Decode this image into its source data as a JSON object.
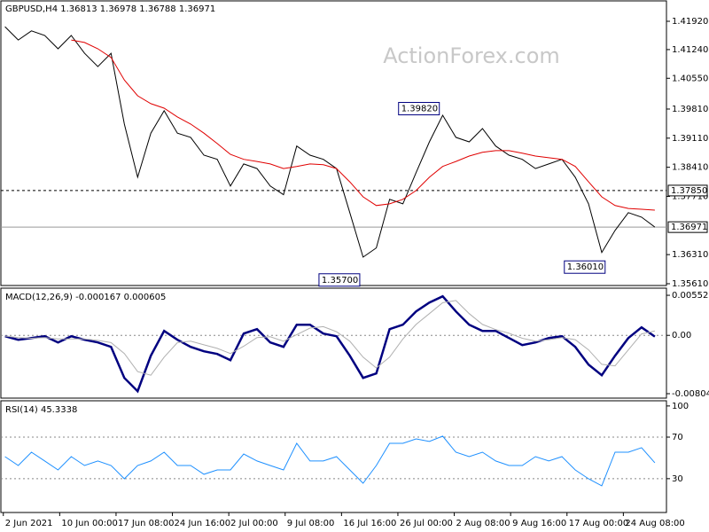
{
  "chart_data": [
    {
      "type": "line",
      "title": "GBPUSD,H4 1.36813 1.36978 1.36788 1.36971",
      "watermark": "ActionForex.com",
      "x": [
        1,
        9,
        17,
        25,
        33,
        41,
        49,
        57,
        65,
        73,
        81,
        89,
        97,
        105,
        113,
        121,
        129,
        137,
        145,
        153,
        161,
        169,
        177,
        185,
        193,
        201,
        209,
        217,
        225,
        233,
        241,
        249,
        257,
        265,
        273,
        281,
        289,
        297,
        305,
        313,
        321,
        329,
        337,
        345,
        353,
        361,
        369,
        377,
        385,
        393
      ],
      "xlim": [
        -2,
        400
      ],
      "series": [
        {
          "color": "#000000",
          "values": [
            1.4179,
            1.4147,
            1.4169,
            1.4158,
            1.4126,
            1.4158,
            1.4115,
            1.4083,
            1.4115,
            1.3945,
            1.3817,
            1.3923,
            1.3977,
            1.3923,
            1.3913,
            1.387,
            1.386,
            1.3796,
            1.3849,
            1.3838,
            1.3796,
            1.3775,
            1.3892,
            1.387,
            1.386,
            1.3838,
            1.3732,
            1.3625,
            1.3647,
            1.3764,
            1.3753,
            1.3828,
            1.3902,
            1.3966,
            1.3913,
            1.3902,
            1.3934,
            1.3892,
            1.387,
            1.386,
            1.3838,
            1.3849,
            1.386,
            1.3817,
            1.3753,
            1.3636,
            1.3689,
            1.3732,
            1.3721,
            1.36971
          ]
        },
        {
          "color": "#e00000",
          "values": [
            null,
            null,
            null,
            null,
            null,
            1.4147,
            1.4141,
            1.4126,
            1.4105,
            1.4051,
            1.4013,
            1.3994,
            1.3983,
            1.3962,
            1.3945,
            1.3923,
            1.3898,
            1.3872,
            1.386,
            1.3855,
            1.3849,
            1.3838,
            1.3843,
            1.3849,
            1.3847,
            1.3838,
            1.3806,
            1.377,
            1.3749,
            1.3753,
            1.3764,
            1.3785,
            1.3817,
            1.3843,
            1.3855,
            1.3868,
            1.3877,
            1.3881,
            1.3881,
            1.3875,
            1.3868,
            1.3864,
            1.386,
            1.3843,
            1.3806,
            1.377,
            1.3749,
            1.3742,
            1.374,
            1.3738
          ]
        }
      ],
      "ylim": [
        1.35503,
        1.42432
      ],
      "yticks": [
        {
          "value": 1.4192,
          "label": "1.41920"
        },
        {
          "value": 1.4124,
          "label": "1.41240"
        },
        {
          "value": 1.4055,
          "label": "1.40550"
        },
        {
          "value": 1.3981,
          "label": "1.39810"
        },
        {
          "value": 1.3911,
          "label": "1.39110"
        },
        {
          "value": 1.3841,
          "label": "1.38410"
        },
        {
          "value": 1.3771,
          "label": "1.37710"
        },
        {
          "value": 1.3631,
          "label": "1.36310"
        },
        {
          "value": 1.3561,
          "label": "1.35610"
        }
      ],
      "hlines": [
        {
          "value": 1.3785,
          "label": "1.37850",
          "style": "dashed"
        },
        {
          "value": 1.36971,
          "label": "1.36971",
          "style": "solid"
        }
      ],
      "annotations": [
        {
          "x": 263,
          "value": 1.3982,
          "label": "1.39820"
        },
        {
          "x": 215,
          "value": 1.357,
          "label": "1.35700"
        },
        {
          "x": 363,
          "value": 1.3601,
          "label": "1.36010"
        }
      ]
    },
    {
      "type": "line",
      "title": "MACD(12,26,9) -0.000167 0.000605",
      "series": [
        {
          "color": "#000080",
          "width": 2.5,
          "values": [
            -0.00012,
            -0.00061,
            -0.00037,
            -0.00012,
            -0.00098,
            -0.00012,
            -0.00061,
            -0.00098,
            -0.00159,
            -0.00586,
            -0.0077,
            -0.00281,
            0.00061,
            -0.00061,
            -0.00159,
            -0.0022,
            -0.00257,
            -0.00342,
            0.00024,
            0.00086,
            -0.00098,
            -0.00159,
            0.00147,
            0.00147,
            0.00024,
            -0.00012,
            -0.00281,
            -0.00586,
            -0.00525,
            0.00086,
            0.00147,
            0.0033,
            0.00452,
            0.00538,
            0.0033,
            0.00147,
            0.00061,
            0.00061,
            -0.00037,
            -0.00134,
            -0.00098,
            -0.00037,
            -0.00012,
            -0.00159,
            -0.00403,
            -0.0055,
            -0.00281,
            -0.00037,
            0.0011,
            -0.000167
          ]
        },
        {
          "color": "#b0b0b0",
          "width": 1,
          "values": [
            -0.0001,
            -0.0003,
            -0.0004,
            -0.0003,
            -0.0005,
            -0.0005,
            -0.0005,
            -0.0007,
            -0.001,
            -0.0025,
            -0.005,
            -0.0055,
            -0.003,
            -0.001,
            -0.0008,
            -0.0013,
            -0.0018,
            -0.0025,
            -0.0015,
            -0.0003,
            -0.0002,
            -0.0008,
            0.0001,
            0.001,
            0.0012,
            0.0005,
            -0.0008,
            -0.003,
            -0.0045,
            -0.003,
            -0.0005,
            0.0015,
            0.003,
            0.0045,
            0.0048,
            0.003,
            0.0015,
            0.0008,
            0.0003,
            -0.0004,
            -0.0008,
            -0.0006,
            -0.0003,
            -0.0006,
            -0.002,
            -0.004,
            -0.0042,
            -0.002,
            0.0002,
            0.000605
          ]
        }
      ],
      "ylim": [
        -0.00865,
        0.00638
      ],
      "yticks": [
        0.00552,
        {
          "value": 0,
          "label": "0.00"
        },
        -0.00804
      ],
      "levels": [
        0
      ]
    },
    {
      "type": "line",
      "title": "RSI(14) 45.3338",
      "series": [
        {
          "color": "#1e90ff",
          "width": 1,
          "values": [
            51.2,
            42.7,
            55.5,
            47.0,
            38.4,
            51.2,
            42.7,
            47.0,
            42.7,
            29.9,
            42.7,
            47.0,
            55.5,
            42.7,
            42.7,
            34.2,
            38.4,
            38.4,
            53.8,
            47.0,
            42.7,
            38.4,
            64.0,
            47.0,
            47.0,
            51.2,
            38.4,
            25.6,
            42.7,
            64.0,
            64.0,
            68.3,
            65.8,
            70.9,
            55.5,
            51.2,
            55.5,
            47.0,
            42.7,
            42.7,
            51.2,
            47.0,
            51.2,
            38.4,
            29.9,
            23.1,
            55.5,
            55.5,
            59.8,
            45.3338
          ]
        }
      ],
      "ylim": [
        0,
        105
      ],
      "yticks": [
        100,
        70,
        30
      ],
      "levels": [
        70,
        30
      ],
      "xticks": [
        {
          "value": 0,
          "label": "2 Jun 2021"
        },
        {
          "value": 34,
          "label": "10 Jun 00:00"
        },
        {
          "value": 68,
          "label": "17 Jun 08:00"
        },
        {
          "value": 102,
          "label": "24 Jun 16:00"
        },
        {
          "value": 136,
          "label": "2 Jul 00:00"
        },
        {
          "value": 170,
          "label": "9 Jul 08:00"
        },
        {
          "value": 204,
          "label": "16 Jul 16:00"
        },
        {
          "value": 238,
          "label": "26 Jul 00:00"
        },
        {
          "value": 272,
          "label": "2 Aug 08:00"
        },
        {
          "value": 306,
          "label": "9 Aug 16:00"
        },
        {
          "value": 340,
          "label": "17 Aug 00:00"
        },
        {
          "value": 374,
          "label": "24 Aug 08:00"
        }
      ]
    }
  ]
}
